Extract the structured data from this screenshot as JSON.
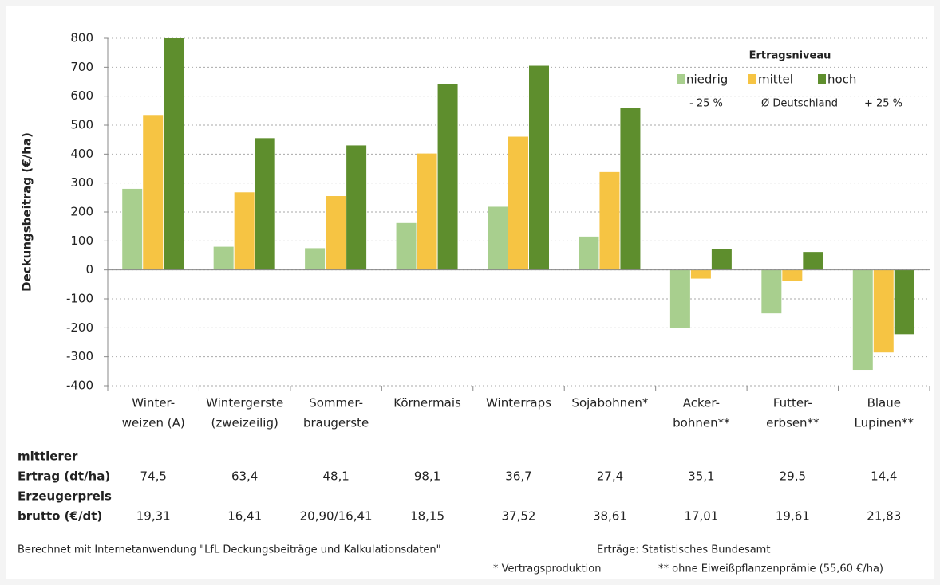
{
  "chart_data": {
    "type": "bar",
    "ylabel": "Deckungsbeitrag (€/ha)",
    "categories": [
      [
        "Winter-",
        "weizen (A)"
      ],
      [
        "Wintergerste",
        "(zweizeilig)"
      ],
      [
        "Sommer-",
        "braugerste"
      ],
      [
        "Körnermais"
      ],
      [
        "Winterraps"
      ],
      [
        "Sojabohnen*"
      ],
      [
        "Acker-",
        "bohnen**"
      ],
      [
        "Futter-",
        "erbsen**"
      ],
      [
        "Blaue",
        "Lupinen**"
      ]
    ],
    "legend_title": "Ertragsniveau",
    "series": [
      {
        "name": "niedrig",
        "description": "- 25 %",
        "color": "#a8cf8e",
        "values": [
          280,
          80,
          75,
          162,
          218,
          115,
          -200,
          -150,
          -345
        ]
      },
      {
        "name": "mittel",
        "description": "Ø Deutschland",
        "color": "#f6c443",
        "values": [
          535,
          268,
          255,
          402,
          460,
          338,
          -30,
          -38,
          -285
        ]
      },
      {
        "name": "hoch",
        "description": "+ 25 %",
        "color": "#5e8e2d",
        "values": [
          800,
          455,
          430,
          642,
          705,
          558,
          72,
          62,
          -222
        ]
      }
    ],
    "ylim": [
      -400,
      800
    ],
    "yticks": [
      -400,
      -300,
      -200,
      -100,
      0,
      100,
      200,
      300,
      400,
      500,
      600,
      700,
      800
    ],
    "grid": true
  },
  "table": {
    "rows": [
      {
        "label": [
          "mittlerer",
          "Ertrag (dt/ha)"
        ],
        "values": [
          "74,5",
          "63,4",
          "48,1",
          "98,1",
          "36,7",
          "27,4",
          "35,1",
          "29,5",
          "14,4"
        ]
      },
      {
        "label": [
          "Erzeugerpreis",
          "brutto (€/dt)"
        ],
        "values": [
          "19,31",
          "16,41",
          "20,90/16,41",
          "18,15",
          "37,52",
          "38,61",
          "17,01",
          "19,61",
          "21,83"
        ]
      }
    ]
  },
  "footer": {
    "source": "Berechnet mit Internetanwendung \"LfL Deckungsbeiträge und Kalkulationsdaten\"",
    "yield_source": "Erträge: Statistisches Bundesamt",
    "note1": "* Vertragsproduktion",
    "note2": "** ohne Eiweißpflanzenprämie (55,60 €/ha)"
  }
}
